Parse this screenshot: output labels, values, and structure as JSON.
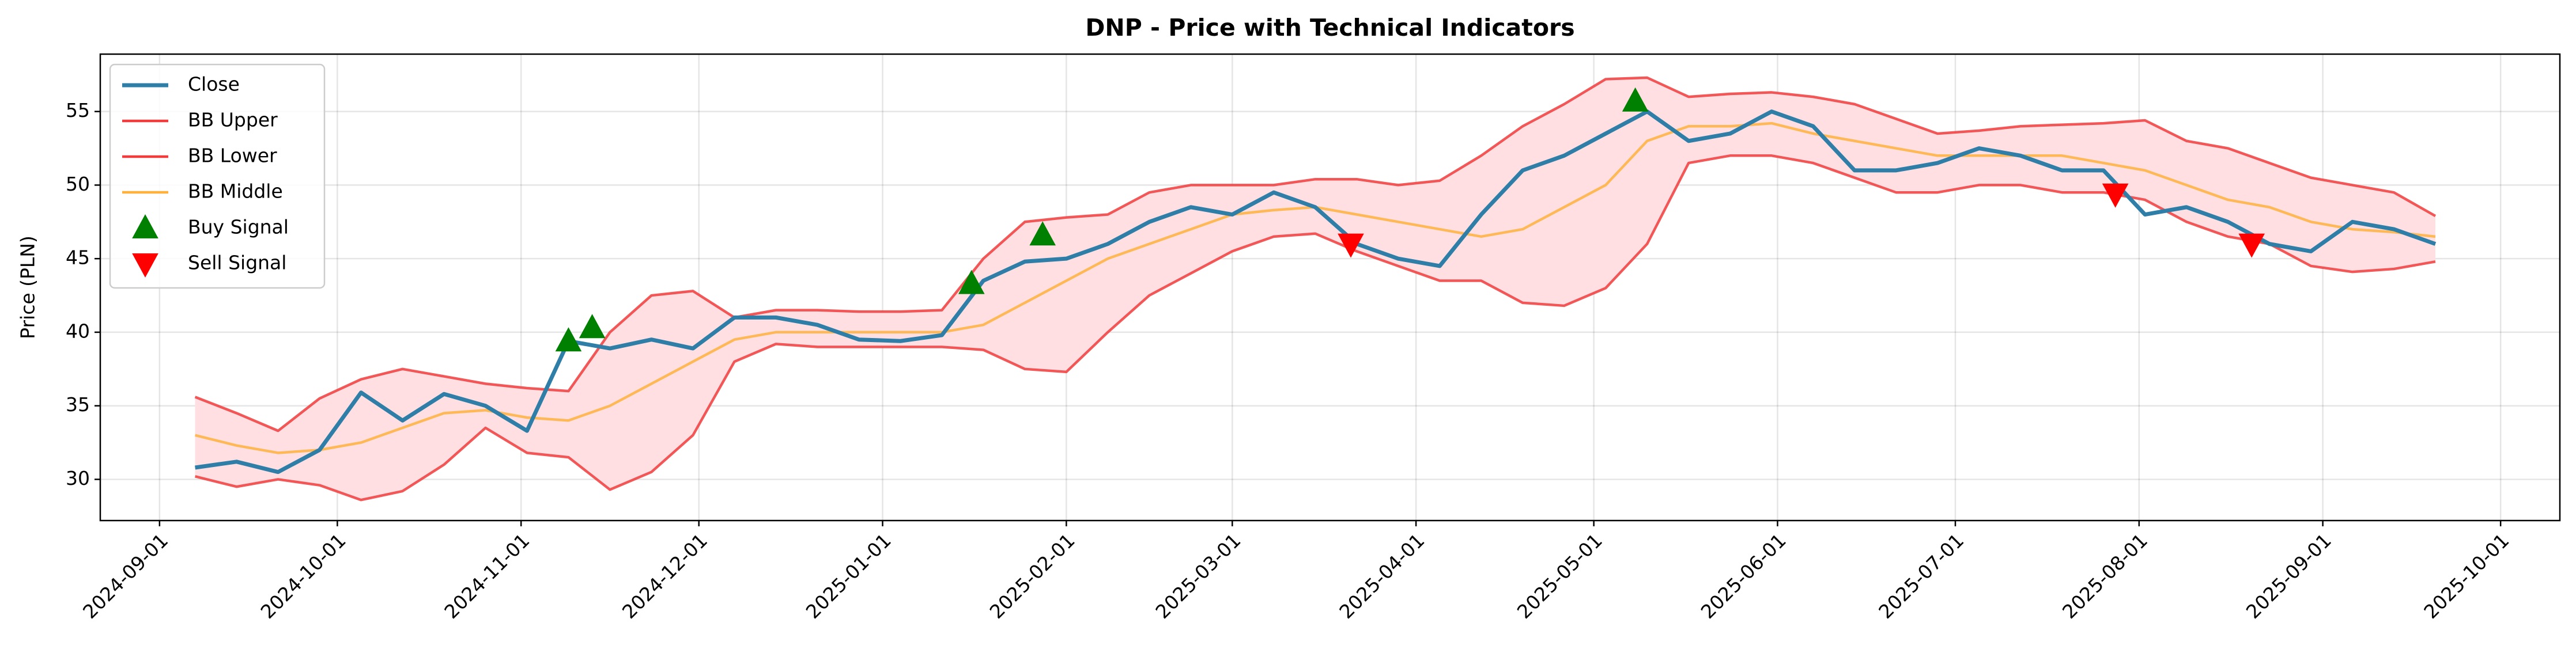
{
  "chart_data": {
    "type": "line",
    "title": "DNP - Price with Technical Indicators",
    "y_label": "Price (PLN)",
    "x": [
      "2024-09-07",
      "2024-09-14",
      "2024-09-21",
      "2024-09-28",
      "2024-10-05",
      "2024-10-12",
      "2024-10-19",
      "2024-10-26",
      "2024-11-02",
      "2024-11-09",
      "2024-11-16",
      "2024-11-23",
      "2024-11-30",
      "2024-12-07",
      "2024-12-14",
      "2024-12-21",
      "2024-12-28",
      "2025-01-04",
      "2025-01-11",
      "2025-01-18",
      "2025-01-25",
      "2025-02-01",
      "2025-02-08",
      "2025-02-15",
      "2025-02-22",
      "2025-03-01",
      "2025-03-08",
      "2025-03-15",
      "2025-03-22",
      "2025-03-29",
      "2025-04-05",
      "2025-04-12",
      "2025-04-19",
      "2025-04-26",
      "2025-05-03",
      "2025-05-10",
      "2025-05-17",
      "2025-05-24",
      "2025-05-31",
      "2025-06-07",
      "2025-06-14",
      "2025-06-21",
      "2025-06-28",
      "2025-07-05",
      "2025-07-12",
      "2025-07-19",
      "2025-07-26",
      "2025-08-02",
      "2025-08-09",
      "2025-08-16",
      "2025-08-23",
      "2025-08-30",
      "2025-09-06",
      "2025-09-13",
      "2025-09-20"
    ],
    "series": [
      {
        "name": "Close",
        "color": "#2e7ea8",
        "width": 7,
        "values": [
          30.8,
          31.2,
          30.5,
          32.0,
          35.9,
          34.0,
          35.8,
          35.0,
          33.3,
          39.4,
          38.9,
          39.5,
          38.9,
          41.0,
          41.0,
          40.5,
          39.5,
          39.4,
          39.8,
          43.5,
          44.8,
          45.0,
          46.0,
          47.5,
          48.5,
          48.0,
          49.5,
          48.5,
          46.0,
          45.0,
          44.5,
          48.0,
          51.0,
          52.0,
          53.5,
          55.0,
          53.0,
          53.5,
          55.0,
          54.0,
          51.0,
          51.0,
          51.5,
          52.5,
          52.0,
          51.0,
          51.0,
          48.0,
          48.5,
          47.5,
          46.0,
          45.5,
          47.5,
          47.0,
          46.0
        ]
      },
      {
        "name": "BB Upper",
        "color": "#f03c3c",
        "width": 4.5,
        "values": [
          35.6,
          34.5,
          33.3,
          35.5,
          36.8,
          37.5,
          37.0,
          36.5,
          36.2,
          36.0,
          40.0,
          42.5,
          42.8,
          41.0,
          41.5,
          41.5,
          41.4,
          41.4,
          41.5,
          45.0,
          47.5,
          47.8,
          48.0,
          49.5,
          50.0,
          50.0,
          50.0,
          50.4,
          50.4,
          50.0,
          50.3,
          52.0,
          54.0,
          55.5,
          57.2,
          57.3,
          56.0,
          56.2,
          56.3,
          56.0,
          55.5,
          54.5,
          53.5,
          53.7,
          54.0,
          54.1,
          54.2,
          54.4,
          53.0,
          52.5,
          51.5,
          50.5,
          50.0,
          49.5,
          47.9
        ]
      },
      {
        "name": "BB Lower",
        "color": "#f03c3c",
        "width": 4.5,
        "values": [
          30.2,
          29.5,
          30.0,
          29.6,
          28.6,
          29.2,
          31.0,
          33.5,
          31.8,
          31.5,
          29.3,
          30.5,
          33.0,
          38.0,
          39.2,
          39.0,
          39.0,
          39.0,
          39.0,
          38.8,
          37.5,
          37.3,
          40.0,
          42.5,
          44.0,
          45.5,
          46.5,
          46.7,
          45.5,
          44.5,
          43.5,
          43.5,
          42.0,
          41.8,
          43.0,
          46.0,
          51.5,
          52.0,
          52.0,
          51.5,
          50.5,
          49.5,
          49.5,
          50.0,
          50.0,
          49.5,
          49.5,
          49.0,
          47.5,
          46.5,
          46.0,
          44.5,
          44.1,
          44.3,
          44.8
        ]
      },
      {
        "name": "BB Middle",
        "color": "#ffb13d",
        "width": 4.5,
        "values": [
          33.0,
          32.3,
          31.8,
          32.0,
          32.5,
          33.5,
          34.5,
          34.7,
          34.2,
          34.0,
          35.0,
          36.5,
          38.0,
          39.5,
          40.0,
          40.0,
          40.0,
          40.0,
          40.0,
          40.5,
          42.0,
          43.5,
          45.0,
          46.0,
          47.0,
          48.0,
          48.3,
          48.5,
          48.0,
          47.5,
          47.0,
          46.5,
          47.0,
          48.5,
          50.0,
          53.0,
          54.0,
          54.0,
          54.2,
          53.5,
          53.0,
          52.5,
          52.0,
          52.0,
          52.0,
          52.0,
          51.5,
          51.0,
          50.0,
          49.0,
          48.5,
          47.5,
          47.0,
          46.8,
          46.5
        ]
      }
    ],
    "band_fill": "#ffdfe2",
    "signals": [
      {
        "name": "Buy Signal",
        "color": "#008000",
        "marker": "triangle-up",
        "x": [
          "2024-11-09",
          "2024-11-13",
          "2025-01-16",
          "2025-01-28",
          "2025-05-08"
        ],
        "values": [
          39.4,
          40.3,
          43.3,
          46.6,
          55.7
        ]
      },
      {
        "name": "Sell Signal",
        "color": "#ff0000",
        "marker": "triangle-down",
        "x": [
          "2025-03-21",
          "2025-07-28",
          "2025-08-20"
        ],
        "values": [
          46.0,
          49.4,
          46.0
        ]
      }
    ],
    "xlim": [
      "2024-08-22",
      "2025-10-11"
    ],
    "xticks": [
      "2024-09-01",
      "2024-10-01",
      "2024-11-01",
      "2024-12-01",
      "2025-01-01",
      "2025-02-01",
      "2025-03-01",
      "2025-04-01",
      "2025-05-01",
      "2025-06-01",
      "2025-07-01",
      "2025-08-01",
      "2025-09-01",
      "2025-10-01"
    ],
    "ylim": [
      27.2,
      58.9
    ],
    "yticks": [
      30,
      35,
      40,
      45,
      50,
      55
    ],
    "grid": true,
    "legend": "upper left"
  }
}
